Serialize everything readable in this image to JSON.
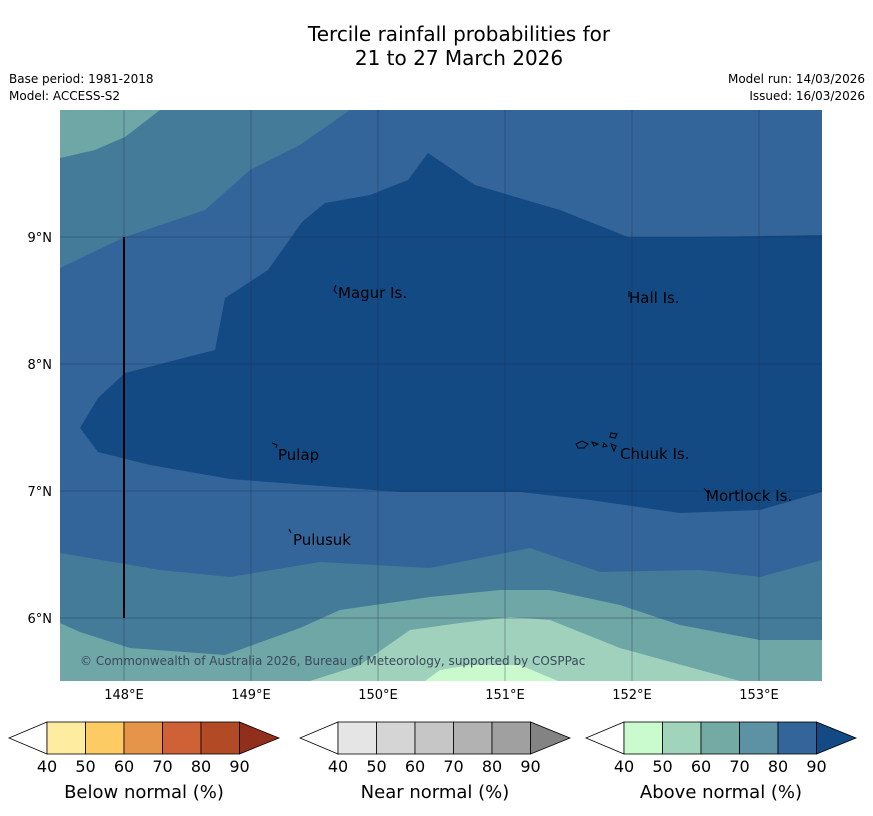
{
  "title": {
    "line1": "Tercile rainfall probabilities for",
    "line2": "21 to 27 March 2026"
  },
  "meta": {
    "base_period": "Base period: 1981-2018",
    "model": "Model: ACCESS-S2",
    "model_run": "Model run: 14/03/2026",
    "issued": "Issued: 16/03/2026"
  },
  "map": {
    "lat_labels": [
      "9°N",
      "8°N",
      "7°N",
      "6°N"
    ],
    "lon_labels": [
      "148°E",
      "149°E",
      "150°E",
      "151°E",
      "152°E",
      "153°E"
    ],
    "places": [
      "Magur Is.",
      "Hall Is.",
      "Pulap",
      "Chuuk Is.",
      "Mortlock Is.",
      "Pulusuk"
    ],
    "copyright": "© Commonwealth of Australia 2026, Bureau of Meteorology, supported by COSPPac"
  },
  "colorbars": [
    {
      "name": "below",
      "label": "Below normal (%)",
      "ticks": [
        "40",
        "50",
        "60",
        "70",
        "80",
        "90"
      ],
      "colors": [
        "#ffffff",
        "#feeda0",
        "#fdcb63",
        "#e5944a",
        "#ce6135",
        "#b24b25",
        "#922f1c"
      ]
    },
    {
      "name": "near",
      "label": "Near normal (%)",
      "ticks": [
        "40",
        "50",
        "60",
        "70",
        "80",
        "90"
      ],
      "colors": [
        "#ffffff",
        "#e5e5e5",
        "#d5d5d5",
        "#c6c6c6",
        "#b2b2b2",
        "#a0a0a0",
        "#838383"
      ]
    },
    {
      "name": "above",
      "label": "Above normal (%)",
      "ticks": [
        "40",
        "50",
        "60",
        "70",
        "80",
        "90"
      ],
      "colors": [
        "#ffffff",
        "#c9fbcf",
        "#a0d5bb",
        "#73aaa3",
        "#5d91a4",
        "#33649a",
        "#134a84"
      ]
    }
  ],
  "colors": {
    "cat_60": "#9fd1bc",
    "cat_70": "#6fa6a6",
    "cat_80": "#447b99",
    "cat_90": "#33659b",
    "cat_max": "#134a84",
    "cat_50": "#c9f9cd"
  }
}
